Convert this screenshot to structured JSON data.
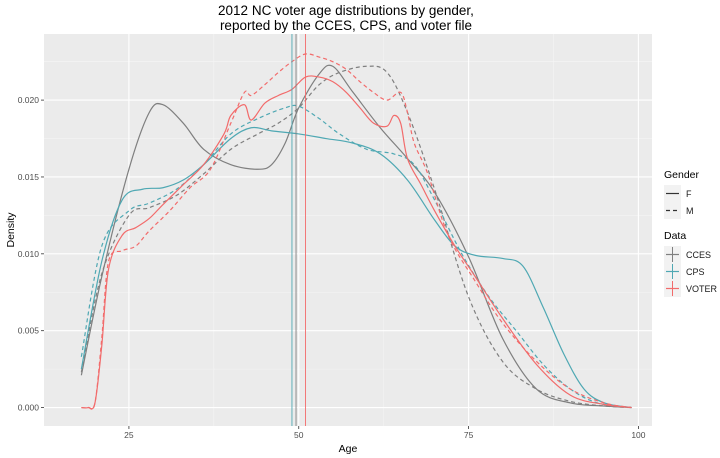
{
  "chart_data": {
    "type": "line",
    "title": "2012 NC voter age distributions by gender,",
    "subtitle": "reported by the CCES, CPS, and voter file",
    "xlabel": "Age",
    "ylabel": "Density",
    "xlim": [
      12.5,
      102
    ],
    "ylim": [
      -0.0012,
      0.0243
    ],
    "xticks": [
      25,
      50,
      75,
      100
    ],
    "xtick_labels": [
      "25",
      "50",
      "75",
      "100"
    ],
    "yticks": [
      0,
      0.005,
      0.01,
      0.015,
      0.02
    ],
    "ytick_labels": [
      "0.000",
      "0.005",
      "0.010",
      "0.015",
      "0.020"
    ],
    "grid": true,
    "legend_position": "right",
    "legends": [
      {
        "title": "Gender",
        "entries": [
          {
            "label": "F",
            "linetype": "solid"
          },
          {
            "label": "M",
            "linetype": "dashed"
          }
        ]
      },
      {
        "title": "Data",
        "entries": [
          {
            "label": "CCES",
            "color": "#7f7f7f"
          },
          {
            "label": "CPS",
            "color": "#4fa8b3"
          },
          {
            "label": "VOTER",
            "color": "#f26b6b"
          }
        ]
      }
    ],
    "vlines": [
      {
        "data": "CPS",
        "x": 49.0
      },
      {
        "data": "CCES",
        "x": 49.6
      },
      {
        "data": "VOTER",
        "x": 51.0
      }
    ],
    "series": [
      {
        "data": "CCES",
        "gender": "F",
        "color": "#7f7f7f",
        "linetype": "solid",
        "x": [
          18,
          21,
          25,
          28,
          30,
          33,
          36,
          40,
          44,
          46,
          48,
          50,
          53,
          55,
          58,
          62,
          66,
          70,
          75,
          80,
          85,
          90,
          95,
          99
        ],
        "y": [
          0.0021,
          0.0085,
          0.0155,
          0.0192,
          0.0197,
          0.0185,
          0.0168,
          0.0158,
          0.0155,
          0.0158,
          0.0172,
          0.0195,
          0.0217,
          0.0222,
          0.0205,
          0.0182,
          0.0162,
          0.014,
          0.0098,
          0.0045,
          0.0012,
          0.0003,
          0.0001,
          0.0
        ]
      },
      {
        "data": "CCES",
        "gender": "M",
        "color": "#7f7f7f",
        "linetype": "dashed",
        "x": [
          18,
          21,
          25,
          28,
          32,
          36,
          40,
          44,
          47,
          50,
          53,
          56,
          60,
          63,
          66,
          70,
          75,
          80,
          85,
          90,
          95,
          99
        ],
        "y": [
          0.0023,
          0.0087,
          0.0125,
          0.013,
          0.0138,
          0.0152,
          0.0168,
          0.0178,
          0.0185,
          0.0195,
          0.021,
          0.0218,
          0.0222,
          0.0218,
          0.0192,
          0.0142,
          0.0072,
          0.003,
          0.0012,
          0.0004,
          0.0001,
          0.0
        ]
      },
      {
        "data": "CPS",
        "gender": "F",
        "color": "#4fa8b3",
        "linetype": "solid",
        "x": [
          18,
          21,
          24,
          27,
          30,
          33,
          36,
          40,
          43,
          46,
          50,
          54,
          58,
          62,
          66,
          70,
          73,
          76,
          80,
          83,
          86,
          89,
          92,
          95,
          99
        ],
        "y": [
          0.0025,
          0.0095,
          0.0135,
          0.0142,
          0.0143,
          0.0148,
          0.0158,
          0.0175,
          0.0182,
          0.018,
          0.0178,
          0.0175,
          0.0172,
          0.0165,
          0.0148,
          0.0122,
          0.0105,
          0.0099,
          0.0097,
          0.0092,
          0.0065,
          0.0035,
          0.0012,
          0.0003,
          0.0
        ]
      },
      {
        "data": "CPS",
        "gender": "M",
        "color": "#4fa8b3",
        "linetype": "dashed",
        "x": [
          18,
          21,
          25,
          28,
          32,
          36,
          40,
          44,
          48,
          50,
          53,
          56,
          60,
          64,
          67,
          70,
          74,
          78,
          82,
          86,
          90,
          94,
          99
        ],
        "y": [
          0.0033,
          0.0105,
          0.0128,
          0.0133,
          0.0142,
          0.0158,
          0.0178,
          0.0188,
          0.0195,
          0.0196,
          0.0188,
          0.0178,
          0.0168,
          0.0165,
          0.0158,
          0.0135,
          0.01,
          0.0072,
          0.005,
          0.0028,
          0.0012,
          0.0003,
          0.0
        ]
      },
      {
        "data": "VOTER",
        "gender": "F",
        "color": "#f26b6b",
        "linetype": "solid",
        "x": [
          18,
          19,
          20,
          21,
          22,
          24,
          26,
          28,
          30,
          33,
          36,
          39,
          40,
          42,
          43,
          45,
          47,
          49,
          51,
          53,
          55,
          57,
          59,
          61,
          63,
          64,
          65,
          66,
          68,
          70,
          73,
          76,
          80,
          85,
          90,
          95,
          99
        ],
        "y": [
          0.0,
          0.0,
          0.0003,
          0.004,
          0.009,
          0.0112,
          0.0117,
          0.0123,
          0.0132,
          0.0145,
          0.0158,
          0.0178,
          0.019,
          0.0197,
          0.0187,
          0.0198,
          0.0203,
          0.0207,
          0.0215,
          0.0215,
          0.0212,
          0.0205,
          0.0195,
          0.0185,
          0.0183,
          0.019,
          0.0185,
          0.0162,
          0.0145,
          0.0128,
          0.0105,
          0.0085,
          0.0058,
          0.0028,
          0.0008,
          0.0002,
          0.0
        ]
      },
      {
        "data": "VOTER",
        "gender": "M",
        "color": "#f26b6b",
        "linetype": "dashed",
        "x": [
          18,
          19,
          20,
          21,
          22,
          24,
          26,
          28,
          31,
          34,
          37,
          40,
          42,
          43,
          45,
          47,
          49,
          51,
          53,
          55,
          57,
          59,
          61,
          63,
          65,
          66,
          67,
          69,
          72,
          76,
          80,
          85,
          90,
          95,
          99
        ],
        "y": [
          0.0,
          0.0,
          0.0003,
          0.0045,
          0.0095,
          0.0102,
          0.0105,
          0.0115,
          0.0128,
          0.0143,
          0.0155,
          0.0185,
          0.0205,
          0.0203,
          0.021,
          0.0218,
          0.0225,
          0.023,
          0.0228,
          0.0225,
          0.022,
          0.0212,
          0.0205,
          0.02,
          0.0205,
          0.0192,
          0.0172,
          0.0152,
          0.0112,
          0.0082,
          0.0055,
          0.003,
          0.0012,
          0.0003,
          0.0
        ]
      }
    ]
  }
}
